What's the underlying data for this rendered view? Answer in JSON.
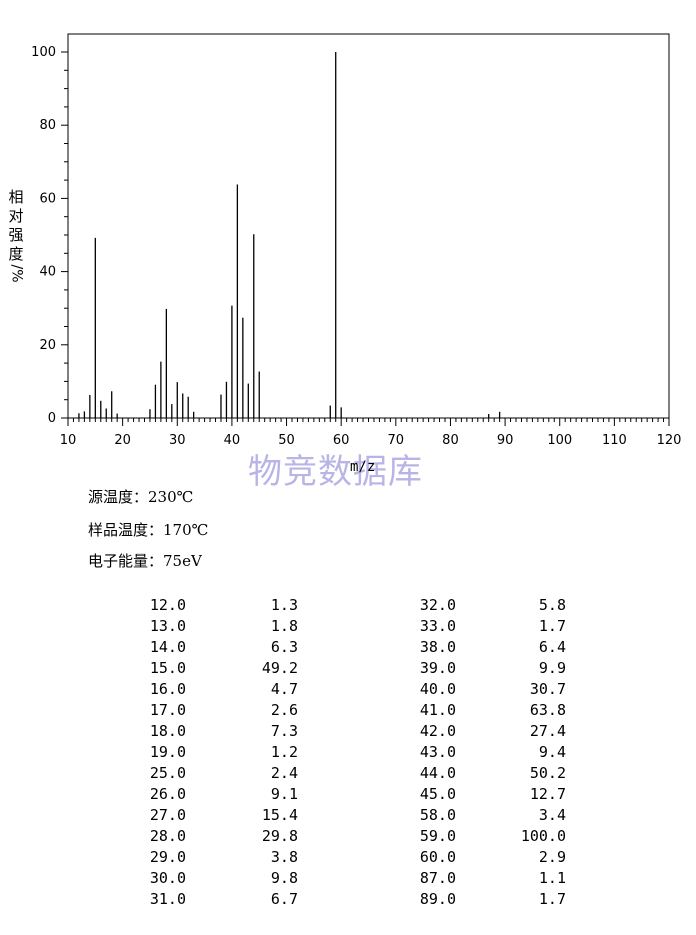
{
  "chart_data": {
    "type": "bar",
    "title": "",
    "xlabel": "m/z",
    "ylabel": "相对强度/%",
    "xlim": [
      10,
      120
    ],
    "ylim": [
      0,
      100
    ],
    "xticks": [
      10,
      20,
      30,
      40,
      50,
      60,
      70,
      80,
      90,
      100,
      110,
      120
    ],
    "yticks": [
      0,
      20,
      40,
      60,
      80,
      100
    ],
    "grid": false,
    "x": [
      12,
      13,
      14,
      15,
      16,
      17,
      18,
      19,
      25,
      26,
      27,
      28,
      29,
      30,
      31,
      32,
      33,
      38,
      39,
      40,
      41,
      42,
      43,
      44,
      45,
      58,
      59,
      60,
      87,
      89
    ],
    "values": [
      1.3,
      1.8,
      6.3,
      49.2,
      4.7,
      2.6,
      7.3,
      1.2,
      2.4,
      9.1,
      15.4,
      29.8,
      3.8,
      9.8,
      6.7,
      5.8,
      1.7,
      6.4,
      9.9,
      30.7,
      63.8,
      27.4,
      9.4,
      50.2,
      12.7,
      3.4,
      100.0,
      2.9,
      1.1,
      1.7
    ]
  },
  "watermark": "物竞数据库",
  "axis_xlabel": "m/z",
  "axis_ylabel_chars": [
    "相",
    "对",
    "强",
    "度"
  ],
  "axis_ylabel_suffix": "/%",
  "conditions": {
    "source_temp": "源温度：230℃",
    "sample_temp": "样品温度：170℃",
    "electron_energy": "电子能量：75eV"
  },
  "peak_table": [
    [
      "12.0",
      "1.3",
      "32.0",
      "5.8"
    ],
    [
      "13.0",
      "1.8",
      "33.0",
      "1.7"
    ],
    [
      "14.0",
      "6.3",
      "38.0",
      "6.4"
    ],
    [
      "15.0",
      "49.2",
      "39.0",
      "9.9"
    ],
    [
      "16.0",
      "4.7",
      "40.0",
      "30.7"
    ],
    [
      "17.0",
      "2.6",
      "41.0",
      "63.8"
    ],
    [
      "18.0",
      "7.3",
      "42.0",
      "27.4"
    ],
    [
      "19.0",
      "1.2",
      "43.0",
      "9.4"
    ],
    [
      "25.0",
      "2.4",
      "44.0",
      "50.2"
    ],
    [
      "26.0",
      "9.1",
      "45.0",
      "12.7"
    ],
    [
      "27.0",
      "15.4",
      "58.0",
      "3.4"
    ],
    [
      "28.0",
      "29.8",
      "59.0",
      "100.0"
    ],
    [
      "29.0",
      "3.8",
      "60.0",
      "2.9"
    ],
    [
      "30.0",
      "9.8",
      "87.0",
      "1.1"
    ],
    [
      "31.0",
      "6.7",
      "89.0",
      "1.7"
    ]
  ]
}
